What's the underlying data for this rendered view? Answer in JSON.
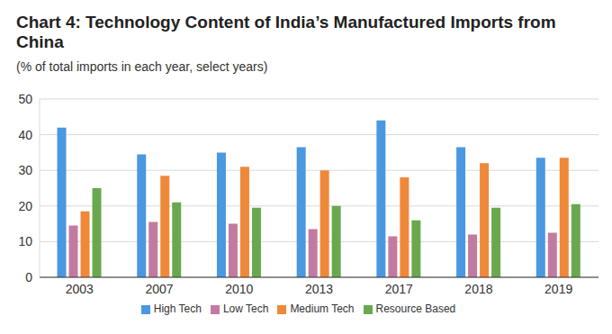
{
  "chart_data": {
    "type": "bar",
    "title": "Chart 4: Technology Content of India’s Manufactured Imports from China",
    "subtitle": "(% of total imports in each year, select years)",
    "categories": [
      "2003",
      "2007",
      "2010",
      "2013",
      "2017",
      "2018",
      "2019"
    ],
    "series": [
      {
        "name": "High Tech",
        "color": "#4a98e0",
        "values": [
          42,
          34.5,
          35,
          36.5,
          44,
          36.5,
          33.5
        ]
      },
      {
        "name": "Low Tech",
        "color": "#c27ba0",
        "values": [
          14.5,
          15.5,
          15,
          13.5,
          11.5,
          12,
          12.5
        ]
      },
      {
        "name": "Medium Tech",
        "color": "#f0883a",
        "values": [
          18.5,
          28.5,
          31,
          30,
          28,
          32,
          33.5
        ]
      },
      {
        "name": "Resource Based",
        "color": "#6aa84f",
        "values": [
          25,
          21,
          19.5,
          20,
          16,
          19.5,
          20.5
        ]
      }
    ],
    "ylim": [
      0,
      50
    ],
    "yticks": [
      0,
      10,
      20,
      30,
      40,
      50
    ],
    "grid": true,
    "legend": "bottom"
  }
}
